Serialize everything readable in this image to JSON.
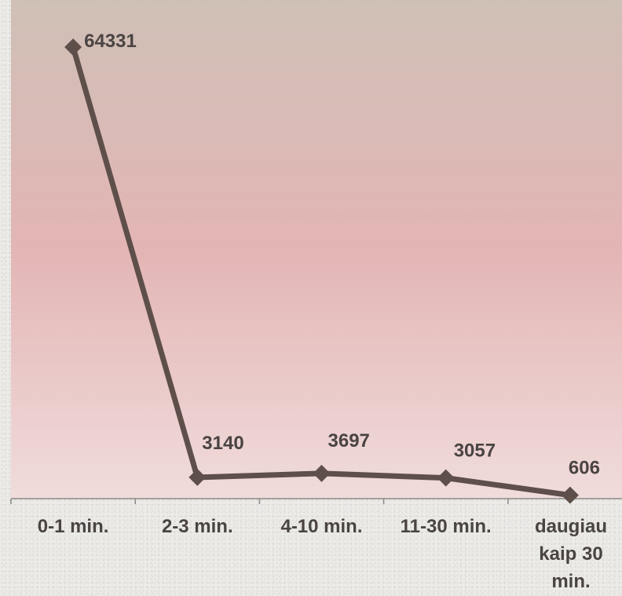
{
  "chart_data": {
    "type": "line",
    "categories": [
      "0-1 min.",
      "2-3 min.",
      "4-10 min.",
      "11-30 min.",
      "daugiau kaip 30 min."
    ],
    "category_lines": [
      [
        "0-1 min."
      ],
      [
        "2-3 min."
      ],
      [
        "4-10 min."
      ],
      [
        "11-30 min."
      ],
      [
        "daugiau",
        "kaip 30",
        "min."
      ]
    ],
    "series": [
      {
        "values": [
          64331,
          3140,
          3697,
          3057,
          606
        ]
      }
    ],
    "data_labels": [
      "64331",
      "3140",
      "3697",
      "3057",
      "606"
    ],
    "ylim": [
      0,
      70000
    ],
    "grid": false,
    "colors": {
      "line": "#5e4f4a",
      "marker": "#5e4f4a",
      "plot_top": "#cfc0b6",
      "plot_mid": "#e3b5b5",
      "plot_bottom": "#f0dcdb",
      "axis": "#8a8a8a",
      "text": "#4a4442"
    }
  }
}
